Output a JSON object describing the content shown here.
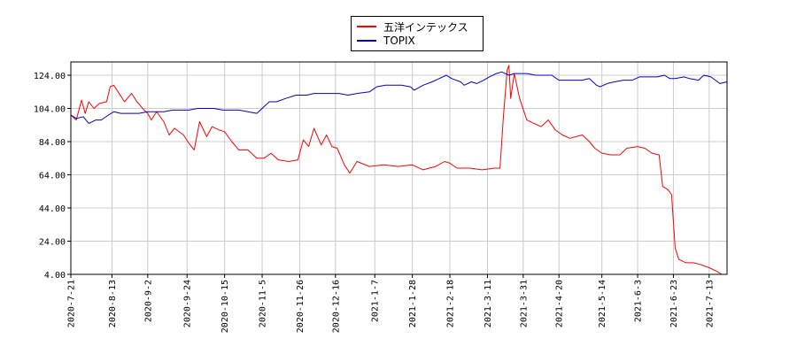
{
  "chart_data": {
    "type": "line",
    "legend_position": "top-center",
    "grid": true,
    "ylim": [
      4,
      132
    ],
    "y_ticks": [
      "124.00",
      "104.00",
      "84.00",
      "64.00",
      "44.00",
      "24.00",
      "4.00"
    ],
    "y_tick_values": [
      124,
      104,
      84,
      64,
      44,
      24,
      4
    ],
    "x_ticks": [
      "2020-7-21",
      "2020-8-13",
      "2020-9-2",
      "2020-9-24",
      "2020-10-15",
      "2020-11-5",
      "2020-11-26",
      "2020-12-16",
      "2021-1-7",
      "2021-1-28",
      "2021-2-18",
      "2021-3-11",
      "2021-3-31",
      "2021-4-20",
      "2021-5-14",
      "2021-6-3",
      "2021-6-23",
      "2021-7-13"
    ],
    "x_range": [
      "2020-7-21",
      "2021-7-23"
    ],
    "series": [
      {
        "name": "五洋インテックス",
        "color": "#ff0000",
        "points": [
          [
            "2020-7-21",
            100
          ],
          [
            "2020-7-24",
            97
          ],
          [
            "2020-7-27",
            109
          ],
          [
            "2020-7-29",
            101
          ],
          [
            "2020-7-31",
            108
          ],
          [
            "2020-8-3",
            104
          ],
          [
            "2020-8-6",
            107
          ],
          [
            "2020-8-10",
            108
          ],
          [
            "2020-8-12",
            117
          ],
          [
            "2020-8-14",
            118
          ],
          [
            "2020-8-17",
            113
          ],
          [
            "2020-8-20",
            108
          ],
          [
            "2020-8-24",
            113
          ],
          [
            "2020-8-27",
            108
          ],
          [
            "2020-8-31",
            103
          ],
          [
            "2020-9-2",
            101
          ],
          [
            "2020-9-4",
            97
          ],
          [
            "2020-9-7",
            102
          ],
          [
            "2020-9-11",
            96
          ],
          [
            "2020-9-14",
            88
          ],
          [
            "2020-9-17",
            92
          ],
          [
            "2020-9-22",
            88
          ],
          [
            "2020-9-25",
            83
          ],
          [
            "2020-9-28",
            79
          ],
          [
            "2020-10-1",
            96
          ],
          [
            "2020-10-5",
            87
          ],
          [
            "2020-10-8",
            93
          ],
          [
            "2020-10-12",
            91
          ],
          [
            "2020-10-15",
            90
          ],
          [
            "2020-10-19",
            84
          ],
          [
            "2020-10-23",
            79
          ],
          [
            "2020-10-28",
            79
          ],
          [
            "2020-11-2",
            74
          ],
          [
            "2020-11-6",
            74
          ],
          [
            "2020-11-10",
            77
          ],
          [
            "2020-11-14",
            73
          ],
          [
            "2020-11-20",
            72
          ],
          [
            "2020-11-25",
            73
          ],
          [
            "2020-11-28",
            85
          ],
          [
            "2020-12-1",
            81
          ],
          [
            "2020-12-4",
            92
          ],
          [
            "2020-12-8",
            82
          ],
          [
            "2020-12-11",
            88
          ],
          [
            "2020-12-14",
            81
          ],
          [
            "2020-12-17",
            80
          ],
          [
            "2020-12-21",
            70
          ],
          [
            "2020-12-24",
            65
          ],
          [
            "2020-12-28",
            72
          ],
          [
            "2021-1-4",
            69
          ],
          [
            "2021-1-12",
            70
          ],
          [
            "2021-1-20",
            69
          ],
          [
            "2021-1-28",
            70
          ],
          [
            "2021-2-3",
            67
          ],
          [
            "2021-2-10",
            69
          ],
          [
            "2021-2-15",
            72
          ],
          [
            "2021-2-18",
            71
          ],
          [
            "2021-2-22",
            68
          ],
          [
            "2021-3-1",
            68
          ],
          [
            "2021-3-8",
            67
          ],
          [
            "2021-3-15",
            68
          ],
          [
            "2021-3-18",
            68
          ],
          [
            "2021-3-20",
            100
          ],
          [
            "2021-3-22",
            127
          ],
          [
            "2021-3-23",
            130
          ],
          [
            "2021-3-24",
            110
          ],
          [
            "2021-3-26",
            125
          ],
          [
            "2021-3-29",
            110
          ],
          [
            "2021-4-2",
            97
          ],
          [
            "2021-4-6",
            95
          ],
          [
            "2021-4-10",
            93
          ],
          [
            "2021-4-14",
            97
          ],
          [
            "2021-4-18",
            91
          ],
          [
            "2021-4-22",
            88
          ],
          [
            "2021-4-26",
            86
          ],
          [
            "2021-5-3",
            88
          ],
          [
            "2021-5-7",
            84
          ],
          [
            "2021-5-10",
            80
          ],
          [
            "2021-5-14",
            77
          ],
          [
            "2021-5-19",
            76
          ],
          [
            "2021-5-24",
            76
          ],
          [
            "2021-5-28",
            80
          ],
          [
            "2021-6-3",
            81
          ],
          [
            "2021-6-7",
            80
          ],
          [
            "2021-6-11",
            77
          ],
          [
            "2021-6-15",
            76
          ],
          [
            "2021-6-17",
            57
          ],
          [
            "2021-6-20",
            55
          ],
          [
            "2021-6-22",
            52
          ],
          [
            "2021-6-24",
            20
          ],
          [
            "2021-6-26",
            13
          ],
          [
            "2021-6-30",
            11
          ],
          [
            "2021-7-4",
            11
          ],
          [
            "2021-7-8",
            10
          ],
          [
            "2021-7-13",
            8
          ],
          [
            "2021-7-17",
            6
          ],
          [
            "2021-7-20",
            4
          ],
          [
            "2021-7-23",
            4
          ]
        ]
      },
      {
        "name": "TOPIX",
        "color": "#0000cc",
        "points": [
          [
            "2020-7-21",
            100
          ],
          [
            "2020-7-24",
            98
          ],
          [
            "2020-7-28",
            99
          ],
          [
            "2020-7-31",
            95
          ],
          [
            "2020-8-4",
            97
          ],
          [
            "2020-8-7",
            97
          ],
          [
            "2020-8-11",
            100
          ],
          [
            "2020-8-14",
            102
          ],
          [
            "2020-8-18",
            101
          ],
          [
            "2020-8-21",
            101
          ],
          [
            "2020-8-25",
            101
          ],
          [
            "2020-8-28",
            101
          ],
          [
            "2020-9-2",
            102
          ],
          [
            "2020-9-7",
            102
          ],
          [
            "2020-9-11",
            102
          ],
          [
            "2020-9-16",
            103
          ],
          [
            "2020-9-21",
            103
          ],
          [
            "2020-9-25",
            103
          ],
          [
            "2020-9-30",
            104
          ],
          [
            "2020-10-5",
            104
          ],
          [
            "2020-10-9",
            104
          ],
          [
            "2020-10-14",
            103
          ],
          [
            "2020-10-19",
            103
          ],
          [
            "2020-10-23",
            103
          ],
          [
            "2020-10-28",
            102
          ],
          [
            "2020-11-2",
            101
          ],
          [
            "2020-11-5",
            104
          ],
          [
            "2020-11-9",
            108
          ],
          [
            "2020-11-13",
            108
          ],
          [
            "2020-11-18",
            110
          ],
          [
            "2020-11-24",
            112
          ],
          [
            "2020-11-30",
            112
          ],
          [
            "2020-12-4",
            113
          ],
          [
            "2020-12-9",
            113
          ],
          [
            "2020-12-14",
            113
          ],
          [
            "2020-12-18",
            113
          ],
          [
            "2020-12-23",
            112
          ],
          [
            "2020-12-28",
            113
          ],
          [
            "2021-1-4",
            114
          ],
          [
            "2021-1-8",
            117
          ],
          [
            "2021-1-13",
            118
          ],
          [
            "2021-1-18",
            118
          ],
          [
            "2021-1-22",
            118
          ],
          [
            "2021-1-27",
            117
          ],
          [
            "2021-1-29",
            115
          ],
          [
            "2021-2-3",
            118
          ],
          [
            "2021-2-8",
            120
          ],
          [
            "2021-2-12",
            122
          ],
          [
            "2021-2-16",
            124
          ],
          [
            "2021-2-19",
            122
          ],
          [
            "2021-2-24",
            120
          ],
          [
            "2021-2-26",
            118
          ],
          [
            "2021-3-2",
            120
          ],
          [
            "2021-3-5",
            119
          ],
          [
            "2021-3-9",
            121
          ],
          [
            "2021-3-12",
            123
          ],
          [
            "2021-3-16",
            125
          ],
          [
            "2021-3-19",
            126
          ],
          [
            "2021-3-23",
            124
          ],
          [
            "2021-3-26",
            125
          ],
          [
            "2021-3-30",
            125
          ],
          [
            "2021-4-2",
            125
          ],
          [
            "2021-4-7",
            124
          ],
          [
            "2021-4-12",
            124
          ],
          [
            "2021-4-16",
            124
          ],
          [
            "2021-4-20",
            121
          ],
          [
            "2021-4-23",
            121
          ],
          [
            "2021-4-28",
            121
          ],
          [
            "2021-5-3",
            121
          ],
          [
            "2021-5-7",
            122
          ],
          [
            "2021-5-11",
            118
          ],
          [
            "2021-5-13",
            117
          ],
          [
            "2021-5-17",
            119
          ],
          [
            "2021-5-21",
            120
          ],
          [
            "2021-5-26",
            121
          ],
          [
            "2021-5-31",
            121
          ],
          [
            "2021-6-4",
            123
          ],
          [
            "2021-6-9",
            123
          ],
          [
            "2021-6-14",
            123
          ],
          [
            "2021-6-18",
            124
          ],
          [
            "2021-6-21",
            122
          ],
          [
            "2021-6-24",
            122
          ],
          [
            "2021-6-29",
            123
          ],
          [
            "2021-7-2",
            122
          ],
          [
            "2021-7-7",
            121
          ],
          [
            "2021-7-10",
            124
          ],
          [
            "2021-7-14",
            123
          ],
          [
            "2021-7-19",
            119
          ],
          [
            "2021-7-23",
            120
          ]
        ]
      }
    ]
  }
}
